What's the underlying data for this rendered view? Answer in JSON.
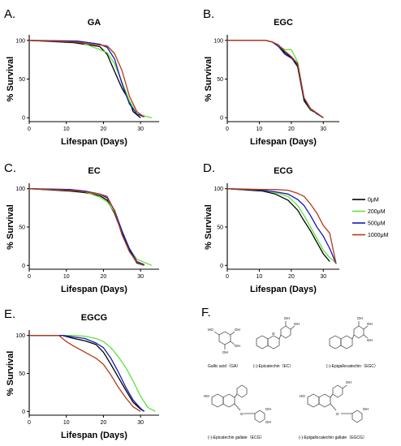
{
  "chart_data": [
    {
      "panel": "A.",
      "title": "GA",
      "type": "line",
      "xlabel": "Lifespan (Days)",
      "ylabel": "% Survival",
      "xlim": [
        0,
        35
      ],
      "ylim": [
        -5,
        105
      ],
      "xticks": [
        "0",
        "10",
        "20",
        "30"
      ],
      "yticks": [
        "0",
        "50",
        "100"
      ],
      "series": [
        {
          "name": "0μM",
          "x": [
            0,
            12,
            19,
            21,
            23,
            25,
            27,
            28,
            30
          ],
          "y": [
            100,
            97,
            92,
            82,
            60,
            38,
            22,
            8,
            0
          ]
        },
        {
          "name": "200μM",
          "x": [
            0,
            13,
            19,
            21,
            23,
            25,
            27,
            29,
            33
          ],
          "y": [
            100,
            99,
            88,
            84,
            70,
            46,
            22,
            5,
            0
          ]
        },
        {
          "name": "500μM",
          "x": [
            0,
            13,
            19,
            21,
            23,
            25,
            27,
            29,
            31
          ],
          "y": [
            100,
            99,
            95,
            91,
            76,
            44,
            18,
            5,
            1
          ]
        },
        {
          "name": "1000μM",
          "x": [
            0,
            12,
            19,
            21,
            23,
            25,
            27,
            29,
            31
          ],
          "y": [
            100,
            98,
            94,
            93,
            83,
            61,
            28,
            8,
            1
          ]
        }
      ]
    },
    {
      "panel": "B.",
      "title": "EGC",
      "type": "line",
      "xlabel": "Lifespan (Days)",
      "ylabel": "% Survival",
      "xlim": [
        0,
        35
      ],
      "ylim": [
        -5,
        105
      ],
      "xticks": [
        "0",
        "10",
        "20",
        "30"
      ],
      "yticks": [
        "0",
        "50",
        "100"
      ],
      "series": [
        {
          "name": "0μM",
          "x": [
            0,
            12,
            14,
            16,
            18,
            20,
            22,
            24,
            26,
            28,
            30
          ],
          "y": [
            100,
            100,
            98,
            94,
            84,
            78,
            66,
            22,
            10,
            6,
            0
          ]
        },
        {
          "name": "200μM",
          "x": [
            0,
            12,
            14,
            16,
            18,
            20,
            22,
            24,
            26,
            28,
            30
          ],
          "y": [
            100,
            100,
            98,
            93,
            88,
            88,
            72,
            25,
            11,
            6,
            0
          ]
        },
        {
          "name": "500μM",
          "x": [
            0,
            12,
            14,
            16,
            18,
            20,
            22,
            24,
            26,
            28,
            30
          ],
          "y": [
            100,
            100,
            98,
            92,
            82,
            77,
            69,
            24,
            12,
            5,
            0
          ]
        },
        {
          "name": "1000μM",
          "x": [
            0,
            12,
            14,
            16,
            18,
            20,
            22,
            24,
            26,
            28,
            30
          ],
          "y": [
            100,
            100,
            98,
            94,
            86,
            79,
            70,
            26,
            12,
            6,
            0
          ]
        }
      ]
    },
    {
      "panel": "C.",
      "title": "EC",
      "type": "line",
      "xlabel": "Lifespan (Days)",
      "ylabel": "% Survival",
      "xlim": [
        0,
        35
      ],
      "ylim": [
        -5,
        105
      ],
      "xticks": [
        "0",
        "10",
        "20",
        "30"
      ],
      "yticks": [
        "0",
        "50",
        "100"
      ],
      "series": [
        {
          "name": "0μM",
          "x": [
            0,
            11,
            15,
            19,
            21,
            23,
            25,
            27,
            29,
            31
          ],
          "y": [
            100,
            97,
            95,
            91,
            85,
            68,
            42,
            20,
            3,
            0
          ]
        },
        {
          "name": "200μM",
          "x": [
            0,
            11,
            15,
            19,
            21,
            23,
            25,
            27,
            29,
            33
          ],
          "y": [
            100,
            98,
            96,
            89,
            83,
            70,
            45,
            22,
            8,
            0
          ]
        },
        {
          "name": "500μM",
          "x": [
            0,
            11,
            15,
            19,
            21,
            23,
            25,
            27,
            29,
            31
          ],
          "y": [
            100,
            99,
            97,
            93,
            88,
            72,
            45,
            22,
            5,
            1
          ]
        },
        {
          "name": "1000μM",
          "x": [
            0,
            11,
            15,
            19,
            21,
            23,
            25,
            27,
            29,
            31
          ],
          "y": [
            100,
            98,
            96,
            93,
            90,
            71,
            40,
            18,
            4,
            0
          ]
        }
      ]
    },
    {
      "panel": "D.",
      "title": "ECG",
      "type": "line",
      "xlabel": "Lifespan (Days)",
      "ylabel": "% Survival",
      "xlim": [
        0,
        35
      ],
      "ylim": [
        -5,
        105
      ],
      "xticks": [
        "0",
        "10",
        "20",
        "30"
      ],
      "yticks": [
        "0",
        "50",
        "100"
      ],
      "legend_position": "right",
      "series": [
        {
          "name": "0μM",
          "x": [
            0,
            11,
            15,
            19,
            22,
            24,
            26,
            28,
            30,
            32
          ],
          "y": [
            100,
            97,
            93,
            85,
            72,
            58,
            45,
            30,
            15,
            5
          ]
        },
        {
          "name": "200μM",
          "x": [
            0,
            11,
            15,
            19,
            22,
            24,
            26,
            28,
            30,
            32,
            34
          ],
          "y": [
            100,
            98,
            95,
            90,
            78,
            65,
            50,
            35,
            20,
            10,
            3
          ]
        },
        {
          "name": "500μM",
          "x": [
            0,
            11,
            15,
            19,
            22,
            24,
            26,
            28,
            30,
            32,
            34
          ],
          "y": [
            100,
            98,
            96,
            93,
            86,
            78,
            65,
            50,
            38,
            22,
            2
          ]
        },
        {
          "name": "1000μM",
          "x": [
            0,
            11,
            15,
            19,
            22,
            24,
            26,
            28,
            30,
            32,
            34
          ],
          "y": [
            100,
            99,
            99,
            98,
            94,
            90,
            80,
            68,
            52,
            42,
            2
          ]
        }
      ]
    },
    {
      "panel": "E.",
      "title": "EGCG",
      "type": "line",
      "xlabel": "Lifespan (Days)",
      "ylabel": "% Survival",
      "xlim": [
        0,
        35
      ],
      "ylim": [
        -5,
        105
      ],
      "xticks": [
        "0",
        "10",
        "20",
        "30"
      ],
      "yticks": [
        "0",
        "50",
        "100"
      ],
      "series": [
        {
          "name": "0μM",
          "x": [
            0,
            9,
            12,
            15,
            18,
            20,
            22,
            24,
            26,
            28,
            30,
            31
          ],
          "y": [
            100,
            100,
            96,
            93,
            88,
            78,
            62,
            45,
            28,
            12,
            3,
            0
          ]
        },
        {
          "name": "200μM",
          "x": [
            0,
            12,
            15,
            18,
            20,
            22,
            24,
            26,
            28,
            30,
            32,
            34
          ],
          "y": [
            100,
            100,
            99,
            96,
            92,
            84,
            72,
            58,
            40,
            20,
            5,
            0
          ]
        },
        {
          "name": "500μM",
          "x": [
            0,
            9,
            12,
            15,
            18,
            20,
            22,
            24,
            26,
            28,
            30,
            31
          ],
          "y": [
            100,
            100,
            98,
            96,
            90,
            84,
            70,
            52,
            32,
            15,
            4,
            0
          ]
        },
        {
          "name": "1000μM",
          "x": [
            0,
            8,
            10,
            12,
            15,
            18,
            20,
            22,
            24,
            26,
            28,
            30
          ],
          "y": [
            100,
            100,
            92,
            86,
            78,
            70,
            62,
            48,
            32,
            18,
            6,
            0
          ]
        }
      ]
    }
  ],
  "series_colors": {
    "0μM": "#000000",
    "200μM": "#5ee13c",
    "500μM": "#1717b8",
    "1000μM": "#b23a16"
  },
  "legend": {
    "items": [
      "0μM",
      "200μM",
      "500μM",
      "1000μM"
    ]
  },
  "panel_f": {
    "letter": "F.",
    "compounds": [
      {
        "label": "Gallic acid（GA）"
      },
      {
        "label": "(-)-Epicatechin（EC）"
      },
      {
        "label": "(-)-Epigallocatechin（EGC）"
      },
      {
        "label": "(-)-Epicatechin gallate（ECG）"
      },
      {
        "label": "(-)-Epigallocatechin gallate（EGCG）"
      }
    ],
    "atoms": {
      "oh": "OH",
      "ho": "HO",
      "o": "O"
    }
  }
}
